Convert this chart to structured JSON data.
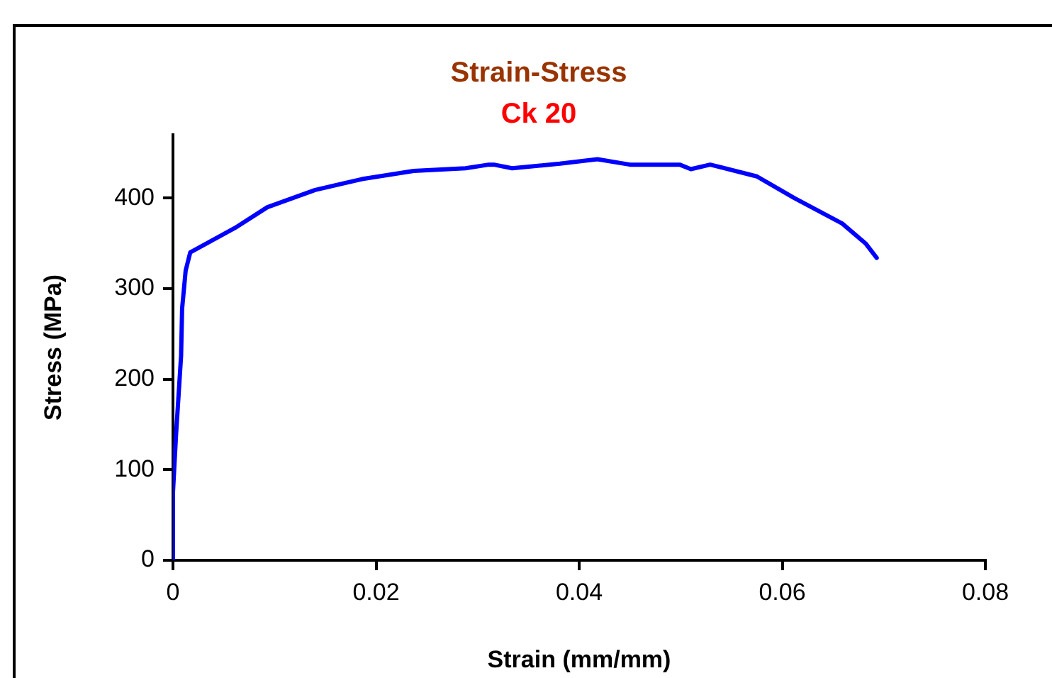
{
  "chart_data": {
    "type": "line",
    "title": "Strain-Stress",
    "subtitle": "Ck 20",
    "xlabel": "Strain (mm/mm)",
    "ylabel": "Stress (MPa)",
    "xlim": [
      0,
      0.08
    ],
    "xticks": [
      0,
      0.02,
      0.04,
      0.06,
      0.08
    ],
    "ylim": [
      0,
      470
    ],
    "yticks": [
      0,
      100,
      200,
      300,
      400
    ],
    "grid": false,
    "legend": false,
    "marker": "none",
    "line_style": "solid",
    "series": [
      {
        "color": "#0000ff",
        "x": [
          0,
          0,
          0.0003,
          0.0008,
          0.0009,
          0.00125,
          0.0017,
          0.0061,
          0.0093,
          0.014,
          0.0186,
          0.0237,
          0.0288,
          0.0311,
          0.0316,
          0.0334,
          0.0381,
          0.0418,
          0.045,
          0.0499,
          0.051,
          0.0529,
          0.0575,
          0.0612,
          0.0659,
          0.0682,
          0.0693
        ],
        "values": [
          0,
          75,
          138,
          226,
          278,
          320,
          340,
          367,
          390,
          409,
          421,
          430,
          433,
          437,
          437,
          433,
          438,
          443,
          437,
          437,
          432,
          437,
          424,
          400,
          372,
          350,
          334
        ]
      }
    ]
  }
}
